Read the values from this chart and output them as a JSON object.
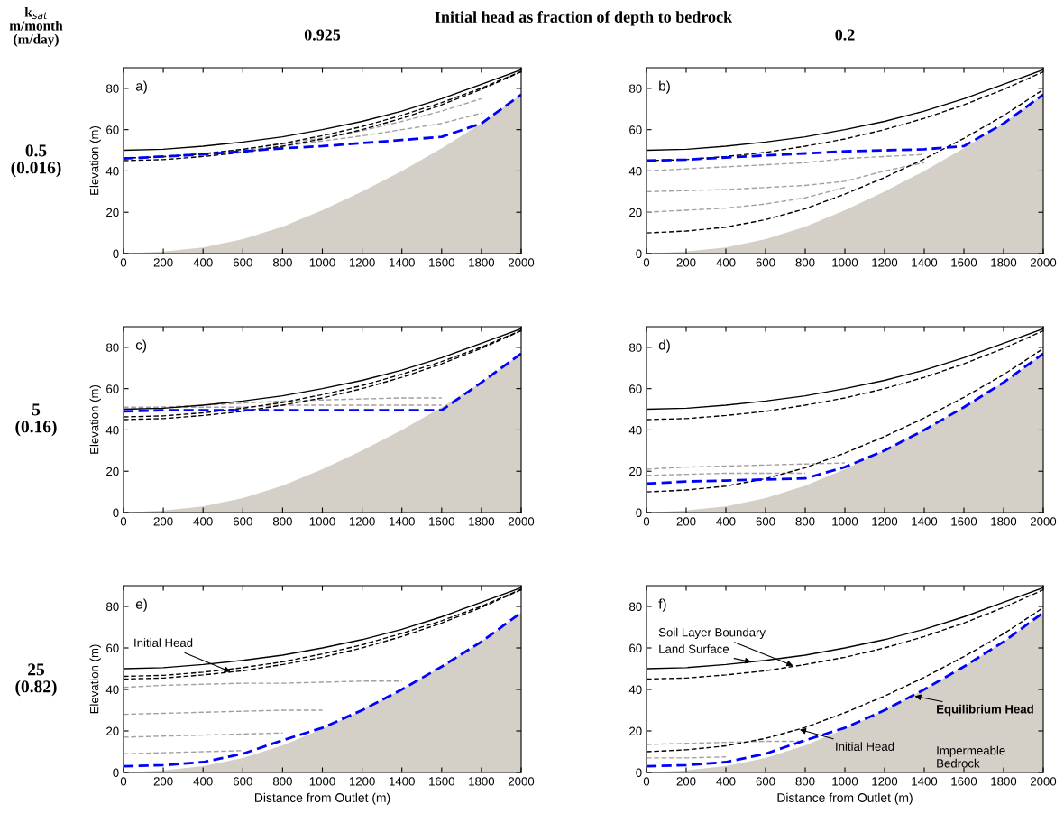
{
  "chart_data": [
    {
      "type": "line",
      "title": "0.925",
      "ylabel": "Elevation (m)",
      "x": [
        0,
        200,
        400,
        600,
        800,
        1000,
        1200,
        1400,
        1600,
        1800,
        2000
      ],
      "xlim": [
        0,
        2000
      ],
      "ylim": [
        0,
        90
      ],
      "xticks": [
        0,
        200,
        400,
        600,
        800,
        1000,
        1200,
        1400,
        1600,
        1800,
        2000
      ],
      "yticks": [
        0,
        20,
        40,
        60,
        80
      ],
      "annotations": [
        "a)",
        "Initial head as fraction of depth to bedrock",
        "k$_{sat}$\nm/month\n(m/day)",
        "0.5\n(0.016)"
      ],
      "series": [
        {
          "type": "area",
          "color": "#d4d0c8",
          "values": [
            0,
            1,
            3,
            7,
            13,
            21,
            30,
            40,
            51,
            63,
            77
          ]
        },
        {
          "color": "#a0a0a0",
          "line_style": "dashed",
          "x": [
            0,
            200,
            400,
            600,
            800,
            1000,
            1200,
            1400,
            1600,
            1800
          ],
          "values": [
            46,
            47.2,
            48.5,
            50.5,
            53,
            56,
            59.5,
            64,
            69,
            75
          ]
        },
        {
          "color": "#a0a0a0",
          "line_style": "dashed",
          "x": [
            0,
            200,
            400,
            600,
            800,
            1000,
            1200,
            1400,
            1600,
            1800
          ],
          "values": [
            46,
            47,
            48.2,
            50,
            52,
            54.5,
            57,
            60,
            63,
            68
          ]
        },
        {
          "color": "#000000",
          "line_style": "dashed",
          "values": [
            46.3,
            46.8,
            48.3,
            50.5,
            53.3,
            57.1,
            61.5,
            67,
            73.1,
            80.1,
            88.2
          ]
        },
        {
          "color": "#000000",
          "line_style": "dashed",
          "values": [
            45,
            45.5,
            47,
            49,
            52,
            55.5,
            60,
            65.5,
            72,
            79.5,
            88
          ]
        },
        {
          "color": "#000000",
          "line_style": "solid",
          "values": [
            50,
            50.5,
            52,
            54,
            56.5,
            60,
            64,
            69,
            75,
            82,
            89
          ]
        },
        {
          "color": "#0000ff",
          "line_style": "dashed",
          "values": [
            46,
            47,
            48,
            49.5,
            51,
            52,
            53.5,
            55,
            56.5,
            63,
            77
          ]
        }
      ]
    },
    {
      "type": "line",
      "title": "0.2",
      "x": [
        0,
        200,
        400,
        600,
        800,
        1000,
        1200,
        1400,
        1600,
        1800,
        2000
      ],
      "xlim": [
        0,
        2000
      ],
      "ylim": [
        0,
        90
      ],
      "xticks": [
        0,
        200,
        400,
        600,
        800,
        1000,
        1200,
        1400,
        1600,
        1800,
        2000
      ],
      "yticks": [
        0,
        20,
        40,
        60,
        80
      ],
      "annotations": [
        "b)"
      ],
      "series": [
        {
          "type": "area",
          "color": "#d4d0c8",
          "values": [
            0,
            1,
            3,
            7,
            13,
            21,
            30,
            40,
            51,
            63,
            77
          ]
        },
        {
          "color": "#a0a0a0",
          "line_style": "dashed",
          "x": [
            0,
            200,
            400,
            600,
            800,
            1000,
            1200,
            1400
          ],
          "values": [
            40,
            41,
            42,
            43,
            44,
            46,
            47,
            48
          ]
        },
        {
          "color": "#a0a0a0",
          "line_style": "dashed",
          "x": [
            0,
            200,
            400,
            600,
            800,
            1000,
            1200,
            1400
          ],
          "values": [
            30,
            30.5,
            31,
            32,
            33,
            35,
            40,
            44
          ]
        },
        {
          "color": "#a0a0a0",
          "line_style": "dashed",
          "x": [
            0,
            200,
            400,
            600,
            800,
            1000
          ],
          "values": [
            20,
            21,
            22,
            24,
            27,
            32
          ]
        },
        {
          "color": "#000000",
          "line_style": "dashed",
          "values": [
            10,
            10.9,
            12.8,
            16.4,
            21.7,
            28.8,
            36.8,
            45.8,
            55.8,
            66.8,
            79.4
          ]
        },
        {
          "color": "#000000",
          "line_style": "dashed",
          "values": [
            45,
            45.5,
            47,
            49,
            52,
            55.5,
            60,
            65.5,
            72,
            79.5,
            88
          ]
        },
        {
          "color": "#000000",
          "line_style": "solid",
          "values": [
            50,
            50.5,
            52,
            54,
            56.5,
            60,
            64,
            69,
            75,
            82,
            89
          ]
        },
        {
          "color": "#0000ff",
          "line_style": "dashed",
          "values": [
            45,
            45.5,
            46.5,
            47.5,
            48.5,
            49.5,
            50,
            50.5,
            52,
            63,
            77
          ]
        }
      ]
    },
    {
      "type": "line",
      "ylabel": "Elevation (m)",
      "x": [
        0,
        200,
        400,
        600,
        800,
        1000,
        1200,
        1400,
        1600,
        1800,
        2000
      ],
      "xlim": [
        0,
        2000
      ],
      "ylim": [
        0,
        90
      ],
      "xticks": [
        0,
        200,
        400,
        600,
        800,
        1000,
        1200,
        1400,
        1600,
        1800,
        2000
      ],
      "yticks": [
        0,
        20,
        40,
        60,
        80
      ],
      "annotations": [
        "c)",
        "5\n(0.16)"
      ],
      "series": [
        {
          "type": "area",
          "color": "#d4d0c8",
          "values": [
            0,
            1,
            3,
            7,
            13,
            21,
            30,
            40,
            51,
            63,
            77
          ]
        },
        {
          "color": "#a0a0a0",
          "line_style": "dashed",
          "x": [
            0,
            200,
            400,
            600,
            800,
            1000,
            1200,
            1400,
            1600
          ],
          "values": [
            51,
            51,
            51,
            51,
            52,
            52,
            52,
            52,
            52
          ]
        },
        {
          "color": "#a0a0a0",
          "line_style": "dashed",
          "x": [
            0,
            200,
            400,
            600,
            800,
            1000,
            1200,
            1400,
            1600
          ],
          "values": [
            50,
            51,
            52,
            53,
            54,
            54.5,
            55,
            55.5,
            55.5
          ]
        },
        {
          "color": "#000000",
          "line_style": "dashed",
          "values": [
            46.3,
            46.8,
            48.3,
            50.5,
            53.3,
            57.1,
            61.5,
            67,
            73.1,
            80.1,
            88.2
          ]
        },
        {
          "color": "#000000",
          "line_style": "dashed",
          "values": [
            45,
            45.5,
            47,
            49,
            52,
            55.5,
            60,
            65.5,
            72,
            79.5,
            88
          ]
        },
        {
          "color": "#000000",
          "line_style": "solid",
          "values": [
            50,
            50.5,
            52,
            54,
            56.5,
            60,
            64,
            69,
            75,
            82,
            89
          ]
        },
        {
          "color": "#0000ff",
          "line_style": "dashed",
          "values": [
            49,
            49.5,
            49.5,
            49.5,
            49.5,
            49.5,
            49.5,
            49.5,
            49.5,
            63,
            77
          ]
        }
      ]
    },
    {
      "type": "line",
      "x": [
        0,
        200,
        400,
        600,
        800,
        1000,
        1200,
        1400,
        1600,
        1800,
        2000
      ],
      "xlim": [
        0,
        2000
      ],
      "ylim": [
        0,
        90
      ],
      "xticks": [
        0,
        200,
        400,
        600,
        800,
        1000,
        1200,
        1400,
        1600,
        1800,
        2000
      ],
      "yticks": [
        0,
        20,
        40,
        60,
        80
      ],
      "annotations": [
        "d)"
      ],
      "series": [
        {
          "type": "area",
          "color": "#d4d0c8",
          "values": [
            0,
            1,
            3,
            7,
            13,
            21,
            30,
            40,
            51,
            63,
            77
          ]
        },
        {
          "color": "#a0a0a0",
          "line_style": "dashed",
          "x": [
            0,
            200,
            400,
            600,
            800,
            1000
          ],
          "values": [
            21,
            22,
            22.5,
            23,
            23.5,
            24
          ]
        },
        {
          "color": "#a0a0a0",
          "line_style": "dashed",
          "x": [
            0,
            200,
            400,
            600,
            800
          ],
          "values": [
            18,
            18.5,
            19,
            19,
            19
          ]
        },
        {
          "color": "#000000",
          "line_style": "dashed",
          "values": [
            10,
            10.9,
            12.8,
            16.4,
            21.7,
            28.8,
            36.8,
            45.8,
            55.8,
            66.8,
            79.4
          ]
        },
        {
          "color": "#000000",
          "line_style": "dashed",
          "values": [
            45,
            45.5,
            47,
            49,
            52,
            55.5,
            60,
            65.5,
            72,
            79.5,
            88
          ]
        },
        {
          "color": "#000000",
          "line_style": "solid",
          "values": [
            50,
            50.5,
            52,
            54,
            56.5,
            60,
            64,
            69,
            75,
            82,
            89
          ]
        },
        {
          "color": "#0000ff",
          "line_style": "dashed",
          "values": [
            14,
            15,
            15.5,
            16,
            16.5,
            22,
            30,
            40,
            51,
            63,
            77
          ]
        }
      ]
    },
    {
      "type": "line",
      "xlabel": "Distance from Outlet (m)",
      "ylabel": "Elevation (m)",
      "x": [
        0,
        200,
        400,
        600,
        800,
        1000,
        1200,
        1400,
        1600,
        1800,
        2000
      ],
      "xlim": [
        0,
        2000
      ],
      "ylim": [
        0,
        90
      ],
      "xticks": [
        0,
        200,
        400,
        600,
        800,
        1000,
        1200,
        1400,
        1600,
        1800,
        2000
      ],
      "yticks": [
        0,
        20,
        40,
        60,
        80
      ],
      "annotations": [
        "e)",
        {
          "text": "Initial Head",
          "x": 550,
          "y": 48
        },
        "25\n(0.82)"
      ],
      "series": [
        {
          "type": "area",
          "color": "#d4d0c8",
          "values": [
            0,
            1,
            3,
            7,
            13,
            21,
            30,
            40,
            51,
            63,
            77
          ]
        },
        {
          "color": "#a0a0a0",
          "line_style": "dashed",
          "x": [
            0,
            200,
            400,
            600,
            800,
            1000,
            1200,
            1400
          ],
          "values": [
            41,
            42,
            42.5,
            43,
            43,
            43.5,
            44,
            44
          ]
        },
        {
          "color": "#a0a0a0",
          "line_style": "dashed",
          "x": [
            0,
            200,
            400,
            600,
            800,
            1000
          ],
          "values": [
            28,
            28.5,
            29,
            29.5,
            30,
            30
          ]
        },
        {
          "color": "#a0a0a0",
          "line_style": "dashed",
          "x": [
            0,
            200,
            400,
            600,
            800
          ],
          "values": [
            17,
            17.5,
            18,
            18.5,
            19
          ]
        },
        {
          "color": "#a0a0a0",
          "line_style": "dashed",
          "x": [
            0,
            200,
            400,
            600
          ],
          "values": [
            9,
            9.5,
            10,
            10.5
          ]
        },
        {
          "color": "#000000",
          "line_style": "dashed",
          "values": [
            46.3,
            46.8,
            48.3,
            50.5,
            53.3,
            57.1,
            61.5,
            67,
            73.1,
            80.1,
            88.2
          ]
        },
        {
          "color": "#000000",
          "line_style": "dashed",
          "values": [
            45,
            45.5,
            47,
            49,
            52,
            55.5,
            60,
            65.5,
            72,
            79.5,
            88
          ]
        },
        {
          "color": "#000000",
          "line_style": "solid",
          "values": [
            50,
            50.5,
            52,
            54,
            56.5,
            60,
            64,
            69,
            75,
            82,
            89
          ]
        },
        {
          "color": "#0000ff",
          "line_style": "dashed",
          "values": [
            3,
            3.5,
            5,
            9,
            15.5,
            21.5,
            30,
            40,
            51,
            63,
            77
          ]
        }
      ]
    },
    {
      "type": "line",
      "xlabel": "Distance from Outlet (m)",
      "x": [
        0,
        200,
        400,
        600,
        800,
        1000,
        1200,
        1400,
        1600,
        1800,
        2000
      ],
      "xlim": [
        0,
        2000
      ],
      "ylim": [
        0,
        90
      ],
      "xticks": [
        0,
        200,
        400,
        600,
        800,
        1000,
        1200,
        1400,
        1600,
        1800,
        2000
      ],
      "yticks": [
        0,
        20,
        40,
        60,
        80
      ],
      "annotations": [
        "f)",
        {
          "text": "Soil Layer Boundary",
          "x": 750,
          "y": 51
        },
        {
          "text": "Land Surface",
          "x": 540,
          "y": 53
        },
        {
          "text": "Equilibrium Head",
          "x": 1340,
          "y": 37
        },
        {
          "text": "Initial Head",
          "x": 760,
          "y": 21
        },
        "Impermeable\nBedrock"
      ],
      "series": [
        {
          "type": "area",
          "color": "#d4d0c8",
          "values": [
            0,
            1,
            3,
            7,
            13,
            21,
            30,
            40,
            51,
            63,
            77
          ]
        },
        {
          "color": "#a0a0a0",
          "line_style": "dashed",
          "x": [
            0,
            200,
            400,
            600,
            800
          ],
          "values": [
            13.5,
            14,
            14.5,
            15,
            15
          ]
        },
        {
          "color": "#a0a0a0",
          "line_style": "dashed",
          "x": [
            0,
            200,
            400
          ],
          "values": [
            7,
            7,
            7.5
          ]
        },
        {
          "color": "#000000",
          "line_style": "dashed",
          "values": [
            10,
            10.9,
            12.8,
            16.4,
            21.7,
            28.8,
            36.8,
            45.8,
            55.8,
            66.8,
            79.4
          ]
        },
        {
          "color": "#000000",
          "line_style": "dashed",
          "values": [
            45,
            45.5,
            47,
            49,
            52,
            55.5,
            60,
            65.5,
            72,
            79.5,
            88
          ]
        },
        {
          "color": "#000000",
          "line_style": "solid",
          "values": [
            50,
            50.5,
            52,
            54,
            56.5,
            60,
            64,
            69,
            75,
            82,
            89
          ]
        },
        {
          "color": "#0000ff",
          "line_style": "dashed",
          "values": [
            3,
            3.5,
            5,
            9,
            15.5,
            21.5,
            30,
            40,
            51,
            63,
            77
          ]
        }
      ]
    }
  ]
}
